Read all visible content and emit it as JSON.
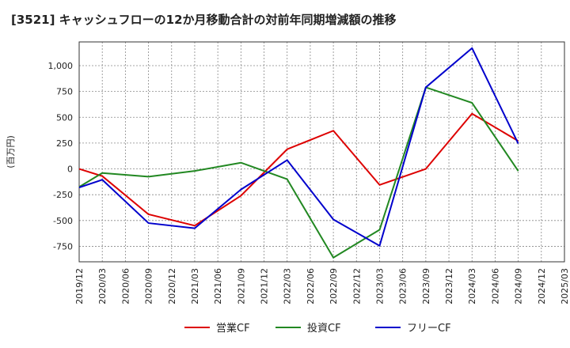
{
  "chart_data": {
    "type": "line",
    "title": "[3521]  キャッシュフローの12か月移動合計の対前年同期増減額の推移",
    "ylabel": "(百万円)",
    "xlabel": "",
    "ylim": [
      -900,
      1230
    ],
    "yticks": [
      -750,
      -500,
      -250,
      0,
      250,
      500,
      750,
      1000
    ],
    "ytick_labels": [
      "-750",
      "-500",
      "-250",
      "0",
      "250",
      "500",
      "750",
      "1,000"
    ],
    "x": [
      "2019/12",
      "2020/03",
      "2020/06",
      "2020/09",
      "2020/12",
      "2021/03",
      "2021/06",
      "2021/09",
      "2021/12",
      "2022/03",
      "2022/06",
      "2022/09",
      "2022/12",
      "2023/03",
      "2023/06",
      "2023/09",
      "2023/12",
      "2024/03",
      "2024/06",
      "2024/09",
      "2024/12",
      "2025/03"
    ],
    "series": [
      {
        "name": "営業CF",
        "color": "#dd0000",
        "values": [
          0,
          -70,
          null,
          -440,
          null,
          -550,
          null,
          -260,
          null,
          190,
          null,
          370,
          null,
          -155,
          null,
          0,
          null,
          535,
          null,
          270,
          null,
          null
        ]
      },
      {
        "name": "投資CF",
        "color": "#228822",
        "values": [
          -175,
          -40,
          null,
          -75,
          null,
          -20,
          null,
          60,
          null,
          -100,
          null,
          -860,
          null,
          -590,
          null,
          790,
          null,
          640,
          null,
          -20,
          null,
          null
        ]
      },
      {
        "name": "フリーCF",
        "color": "#0000cc",
        "values": [
          -180,
          -105,
          null,
          -525,
          null,
          -575,
          null,
          -200,
          null,
          85,
          null,
          -490,
          null,
          -745,
          null,
          790,
          null,
          1170,
          null,
          245,
          null,
          null
        ]
      }
    ],
    "legend_position": "bottom",
    "grid": true
  }
}
